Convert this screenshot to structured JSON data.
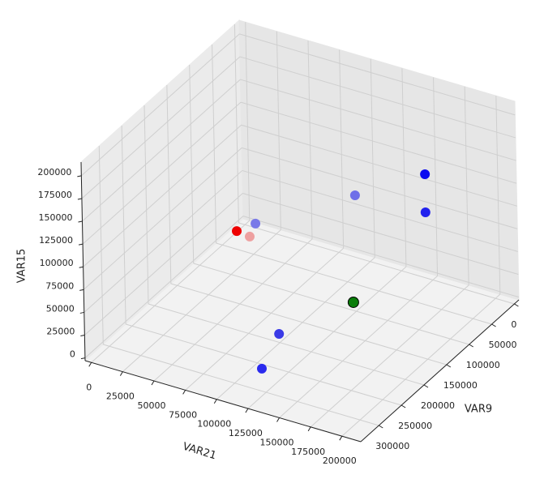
{
  "chart_data": {
    "type": "scatter3d",
    "xlabel": "VAR21",
    "ylabel": "VAR9",
    "zlabel": "VAR15",
    "x": [
      130700,
      113400,
      107200,
      196300,
      201800,
      168400,
      100400,
      80600,
      92100
    ],
    "y": [
      121600,
      276700,
      221000,
      138000,
      153400,
      215400,
      249000,
      236400,
      239600
    ],
    "z": [
      18800,
      7900,
      18800,
      193200,
      160500,
      193200,
      149600,
      127800,
      127800
    ],
    "colors": [
      "#0a7d0a",
      "#2a2aee",
      "#3a3ae6",
      "#0a0af0",
      "#2222ee",
      "#6f6fe8",
      "#7a7ae8",
      "#ee0000",
      "#eea0a0"
    ],
    "xlim": [
      -5000,
      215000
    ],
    "ylim": [
      -10000,
      340000
    ],
    "zlim": [
      -3000,
      215000
    ],
    "xticks": [
      0,
      25000,
      50000,
      75000,
      100000,
      125000,
      150000,
      175000,
      200000
    ],
    "yticks": [
      0,
      50000,
      100000,
      150000,
      200000,
      250000,
      300000
    ],
    "zticks": [
      0,
      25000,
      50000,
      75000,
      100000,
      125000,
      150000,
      175000,
      200000
    ],
    "grid": true
  }
}
